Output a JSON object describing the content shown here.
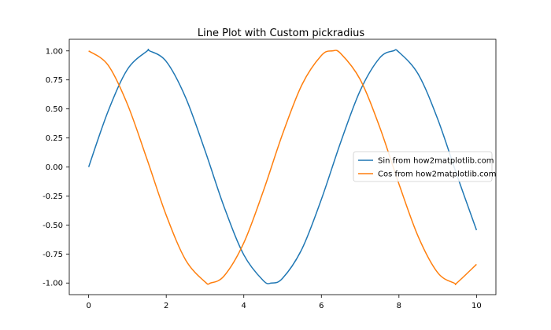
{
  "chart_data": {
    "type": "line",
    "title": "Line Plot with Custom pickradius",
    "xlabel": "",
    "ylabel": "",
    "xlim": [
      -0.5,
      10.5
    ],
    "ylim": [
      -1.1,
      1.1
    ],
    "xticks": [
      0,
      2,
      4,
      6,
      8,
      10
    ],
    "yticks": [
      -1.0,
      -0.75,
      -0.5,
      -0.25,
      0.0,
      0.25,
      0.5,
      0.75,
      1.0
    ],
    "xtick_labels": [
      "0",
      "2",
      "4",
      "6",
      "8",
      "10"
    ],
    "ytick_labels": [
      "-1.00",
      "-0.75",
      "-0.50",
      "-0.25",
      "0.00",
      "0.25",
      "0.50",
      "0.75",
      "1.00"
    ],
    "grid": false,
    "legend_position": "center-right",
    "series": [
      {
        "name": "Sin from how2matplotlib.com",
        "color": "#1f77b4",
        "x": [
          0,
          0.5,
          1,
          1.5,
          1.5708,
          2,
          2.5,
          3,
          3.5,
          4,
          4.5,
          4.7124,
          5,
          5.5,
          6,
          6.5,
          7,
          7.5,
          7.854,
          8,
          8.5,
          9,
          9.5,
          10
        ],
        "y": [
          0.0,
          0.479,
          0.841,
          0.997,
          1.0,
          0.909,
          0.598,
          0.141,
          -0.351,
          -0.757,
          -0.978,
          -1.0,
          -0.959,
          -0.706,
          -0.279,
          0.215,
          0.657,
          0.938,
          1.0,
          0.989,
          0.798,
          0.412,
          -0.075,
          -0.544
        ]
      },
      {
        "name": "Cos from how2matplotlib.com",
        "color": "#ff7f0e",
        "x": [
          0,
          0.5,
          1,
          1.5,
          2,
          2.5,
          3,
          3.1416,
          3.5,
          4,
          4.5,
          5,
          5.5,
          6,
          6.2832,
          6.5,
          7,
          7.5,
          8,
          8.5,
          9,
          9.4248,
          9.5,
          10
        ],
        "y": [
          1.0,
          0.878,
          0.54,
          0.071,
          -0.416,
          -0.801,
          -0.99,
          -1.0,
          -0.936,
          -0.654,
          -0.211,
          0.284,
          0.709,
          0.96,
          1.0,
          0.977,
          0.754,
          0.347,
          -0.146,
          -0.602,
          -0.911,
          -1.0,
          -0.997,
          -0.839
        ]
      }
    ]
  }
}
